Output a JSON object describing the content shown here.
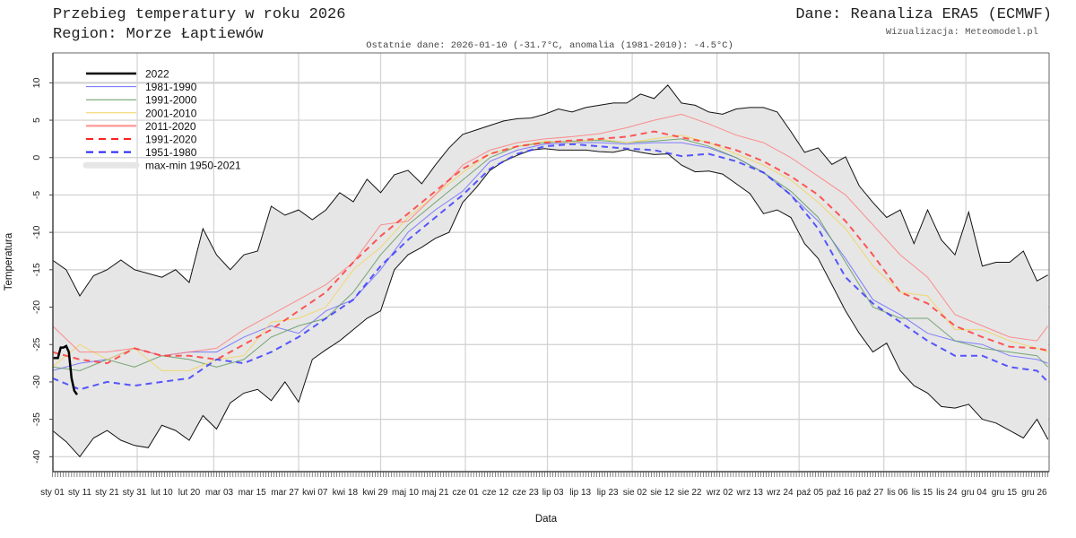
{
  "header": {
    "title": "Przebieg temperatury w roku 2026",
    "region": "Region: Morze Łaptiewów",
    "source": "Dane: Reanaliza ERA5 (ECMWF)",
    "credit": "Wizualizacja: Meteomodel.pl",
    "last_data": "Ostatnie dane: 2026-01-10 (-31.7°C, anomalia (1981-2010): -4.5°C)"
  },
  "chart_data": {
    "type": "line",
    "title": "Przebieg temperatury w roku 2026",
    "xlabel": "Data",
    "ylabel": "Temperatura",
    "ylim": [
      -42,
      14
    ],
    "y_ticks": [
      -40,
      -35,
      -30,
      -25,
      -20,
      -15,
      -10,
      -5,
      0,
      5,
      10
    ],
    "x_tick_labels": [
      "sty 01",
      "sty 11",
      "sty 21",
      "sty 31",
      "lut 10",
      "lut 20",
      "mar 03",
      "mar 15",
      "mar 27",
      "kwi 07",
      "kwi 18",
      "kwi 29",
      "maj 10",
      "maj 21",
      "cze 01",
      "cze 12",
      "cze 23",
      "lip 03",
      "lip 13",
      "lip 23",
      "sie 02",
      "sie 12",
      "sie 22",
      "wrz 02",
      "wrz 13",
      "wrz 24",
      "paź 05",
      "paź 16",
      "paź 27",
      "lis 06",
      "lis 15",
      "lis 24",
      "gru 04",
      "gru 15",
      "gru 26"
    ],
    "grid": true,
    "legend_placement": "top-left",
    "band": {
      "name": "max-min 1950-2021",
      "color": "#e6e6e6",
      "x": [
        "01-01",
        "01-06",
        "01-11",
        "01-16",
        "01-21",
        "01-26",
        "01-31",
        "02-05",
        "02-10",
        "02-15",
        "02-20",
        "02-25",
        "03-02",
        "03-07",
        "03-12",
        "03-17",
        "03-22",
        "03-27",
        "04-01",
        "04-06",
        "04-11",
        "04-16",
        "04-21",
        "04-26",
        "05-01",
        "05-06",
        "05-11",
        "05-16",
        "05-21",
        "05-26",
        "05-31",
        "06-05",
        "06-10",
        "06-15",
        "06-20",
        "06-25",
        "06-30",
        "07-05",
        "07-10",
        "07-15",
        "07-20",
        "07-25",
        "07-30",
        "08-04",
        "08-09",
        "08-14",
        "08-19",
        "08-24",
        "08-29",
        "09-03",
        "09-08",
        "09-13",
        "09-18",
        "09-23",
        "09-28",
        "10-03",
        "10-08",
        "10-13",
        "10-18",
        "10-23",
        "10-28",
        "11-02",
        "11-07",
        "11-12",
        "11-17",
        "11-22",
        "11-27",
        "12-02",
        "12-07",
        "12-12",
        "12-17",
        "12-22",
        "12-27",
        "12-31"
      ],
      "max": [
        -13.7,
        -15,
        -18.5,
        -15.8,
        -15,
        -13.7,
        -15,
        -15.5,
        -16,
        -15,
        -16.7,
        -9.5,
        -13,
        -15,
        -13,
        -12.5,
        -6.5,
        -7.7,
        -7,
        -8.3,
        -7,
        -4.7,
        -5.9,
        -2.9,
        -4.7,
        -2.3,
        -1.7,
        -3.5,
        -1,
        1.3,
        3.1,
        3.7,
        4.3,
        4.9,
        5.2,
        5.3,
        5.8,
        6.5,
        6.1,
        6.7,
        7,
        7.3,
        7.3,
        8.5,
        7.9,
        9.7,
        7.3,
        7,
        6.1,
        5.8,
        6.5,
        6.7,
        6.7,
        6.1,
        3.5,
        0.7,
        1.3,
        -0.9,
        0.1,
        -3.8,
        -6,
        -8,
        -7,
        -11.5,
        -7,
        -11,
        -13,
        -7.3,
        -14.5,
        -14,
        -14,
        -12.5,
        -16.5,
        -15.7
      ],
      "min": [
        -36.5,
        -38,
        -40,
        -37.5,
        -36.5,
        -37.8,
        -38.5,
        -38.8,
        -35.8,
        -36.5,
        -37.8,
        -34.5,
        -36.3,
        -32.8,
        -31.5,
        -31,
        -32.5,
        -30,
        -32.7,
        -27,
        -25.7,
        -24.5,
        -23,
        -21.5,
        -20.5,
        -15,
        -13,
        -12,
        -10.8,
        -10,
        -6,
        -4,
        -1.7,
        -0.5,
        0.3,
        1,
        1.2,
        1,
        1,
        1,
        0.8,
        0.7,
        1.1,
        0.7,
        0.4,
        0.5,
        -1,
        -1.9,
        -1.8,
        -2.2,
        -3.5,
        -4.8,
        -7.5,
        -7,
        -8,
        -11.5,
        -13.5,
        -17,
        -20.5,
        -23.5,
        -26,
        -24.8,
        -28.5,
        -30.5,
        -31.5,
        -33.3,
        -33.5,
        -33,
        -35,
        -35.5,
        -36.5,
        -37.5,
        -35,
        -37.7
      ]
    },
    "x": [
      "01-01",
      "01-11",
      "01-21",
      "01-31",
      "02-10",
      "02-20",
      "03-02",
      "03-12",
      "03-22",
      "04-01",
      "04-11",
      "04-21",
      "05-01",
      "05-11",
      "05-21",
      "05-31",
      "06-10",
      "06-20",
      "06-30",
      "07-10",
      "07-20",
      "07-30",
      "08-09",
      "08-19",
      "08-29",
      "09-08",
      "09-18",
      "09-28",
      "10-08",
      "10-18",
      "10-28",
      "11-07",
      "11-17",
      "11-27",
      "12-07",
      "12-17",
      "12-27",
      "12-31"
    ],
    "series": [
      {
        "name": "1981-1990",
        "color": "#6b6bff",
        "dash": false,
        "width": 1,
        "values": [
          -28.5,
          -27.5,
          -27,
          -25.5,
          -26.5,
          -26,
          -26,
          -24,
          -22.5,
          -23.5,
          -20.5,
          -19,
          -15,
          -10,
          -7,
          -4.5,
          -0.5,
          1,
          1.8,
          2,
          2,
          1.8,
          2,
          2,
          1.3,
          0,
          -2,
          -5,
          -8.5,
          -13.5,
          -19,
          -21,
          -23.5,
          -24.5,
          -25,
          -26.5,
          -27,
          -27.5
        ]
      },
      {
        "name": "1991-2000",
        "color": "#5e9a5e",
        "dash": false,
        "width": 1,
        "values": [
          -28,
          -28.5,
          -27,
          -28,
          -26.5,
          -27,
          -28,
          -27,
          -24,
          -22.5,
          -21.5,
          -18,
          -13,
          -9,
          -6,
          -3,
          0,
          1.5,
          2,
          2.2,
          2.3,
          2,
          2.2,
          2.5,
          1.5,
          0,
          -2,
          -4.5,
          -8,
          -14,
          -20,
          -21.5,
          -21.5,
          -24.5,
          -25.5,
          -26,
          -26.5,
          -28
        ]
      },
      {
        "name": "2001-2010",
        "color": "#f2d35c",
        "dash": false,
        "width": 1,
        "values": [
          -28,
          -25,
          -27,
          -25.5,
          -28.5,
          -28.5,
          -27,
          -26.5,
          -22,
          -21.5,
          -20,
          -15,
          -12,
          -8,
          -5,
          -2,
          0.5,
          1.5,
          2.2,
          2,
          2.5,
          2,
          2.5,
          3,
          2,
          0.5,
          -1,
          -3,
          -6,
          -9.5,
          -14.5,
          -18,
          -18.5,
          -23,
          -23,
          -24.5,
          -25.5,
          -26
        ]
      },
      {
        "name": "2011-2020",
        "color": "#ff7b7b",
        "dash": false,
        "width": 1,
        "values": [
          -22.5,
          -26,
          -26,
          -25.5,
          -26.5,
          -26,
          -25.5,
          -23,
          -21,
          -19,
          -17,
          -14,
          -9,
          -8.5,
          -5,
          -1,
          1,
          2,
          2.5,
          2.8,
          3.2,
          4,
          5,
          5.8,
          4.5,
          3,
          2,
          0,
          -2.5,
          -5,
          -9,
          -13,
          -16,
          -21,
          -22.5,
          -24,
          -24.5,
          -22.5
        ]
      },
      {
        "name": "1991-2020",
        "color": "#ff3b3b",
        "dash": true,
        "width": 2,
        "values": [
          -26,
          -27,
          -27.5,
          -25.5,
          -26.5,
          -26.5,
          -27,
          -25,
          -23,
          -20.5,
          -18,
          -14,
          -10.5,
          -7.5,
          -4.5,
          -1.5,
          0.5,
          1.5,
          2,
          2.3,
          2.5,
          2.8,
          3.5,
          2.7,
          2,
          1,
          -0.5,
          -2.5,
          -5,
          -8.5,
          -13,
          -18,
          -19.5,
          -22.5,
          -24,
          -25.3,
          -25.5,
          -25.8
        ]
      },
      {
        "name": "1951-1980",
        "color": "#3b3bff",
        "dash": true,
        "width": 2,
        "values": [
          -29.5,
          -31,
          -30,
          -30.5,
          -30,
          -29.5,
          -27,
          -27.5,
          -26,
          -24,
          -21.5,
          -19,
          -14.5,
          -11,
          -8,
          -5,
          -1.5,
          0.5,
          1.5,
          1.8,
          1.5,
          1.2,
          1,
          0.2,
          0.5,
          -0.5,
          -2,
          -5,
          -9.5,
          -16,
          -19.5,
          -22,
          -24.5,
          -26.5,
          -26.5,
          -28,
          -28.5,
          -30
        ]
      }
    ],
    "current": {
      "name": "2022",
      "color": "#000000",
      "x": [
        "01-01",
        "01-02",
        "01-03",
        "01-04",
        "01-05",
        "01-06",
        "01-07",
        "01-08",
        "01-09",
        "01-10"
      ],
      "values": [
        -26.8,
        -26.8,
        -26.8,
        -25.4,
        -25.4,
        -25.2,
        -26,
        -29.5,
        -31.2,
        -31.7
      ]
    },
    "legend": [
      {
        "label": "2022",
        "color": "#000000",
        "dash": false,
        "width": 2.5
      },
      {
        "label": "1981-1990",
        "color": "#6b6bff",
        "dash": false,
        "width": 1
      },
      {
        "label": "1991-2000",
        "color": "#5e9a5e",
        "dash": false,
        "width": 1
      },
      {
        "label": "2001-2010",
        "color": "#f2d35c",
        "dash": false,
        "width": 1
      },
      {
        "label": "2011-2020",
        "color": "#ff8c8c",
        "dash": false,
        "width": 2
      },
      {
        "label": "1991-2020",
        "color": "#ff2020",
        "dash": true,
        "width": 2
      },
      {
        "label": "1951-1980",
        "color": "#2020ff",
        "dash": true,
        "width": 2
      },
      {
        "label": "max-min 1950-2021",
        "color": "#e6e6e6",
        "dash": false,
        "width": 7
      }
    ]
  }
}
